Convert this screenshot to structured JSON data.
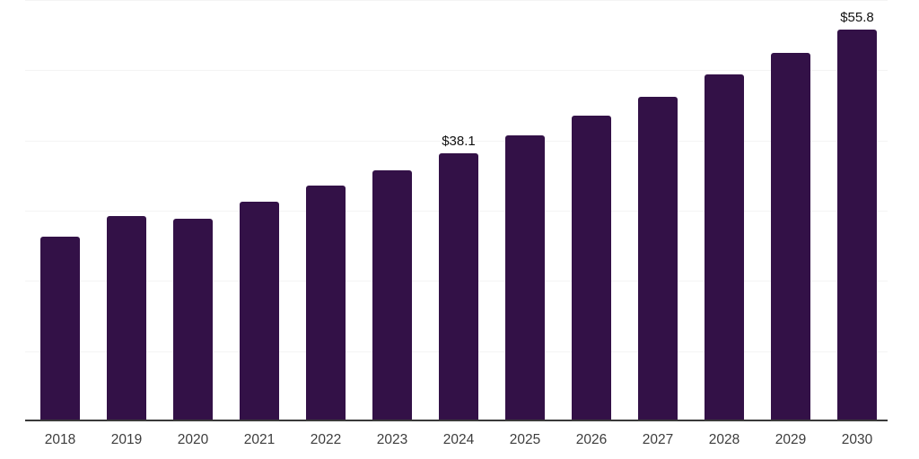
{
  "chart_data": {
    "type": "bar",
    "title": "",
    "xlabel": "",
    "ylabel": "",
    "categories": [
      "2018",
      "2019",
      "2020",
      "2021",
      "2022",
      "2023",
      "2024",
      "2025",
      "2026",
      "2027",
      "2028",
      "2029",
      "2030"
    ],
    "values": [
      26.2,
      29.1,
      28.7,
      31.2,
      33.4,
      35.7,
      38.1,
      40.6,
      43.4,
      46.2,
      49.3,
      52.5,
      55.8
    ],
    "data_labels": [
      "",
      "",
      "",
      "",
      "",
      "",
      "$38.1",
      "",
      "",
      "",
      "",
      "",
      "$55.8"
    ],
    "ylim": [
      0,
      60
    ],
    "gridline_step": 10,
    "grid": "horizontal",
    "legend": "none",
    "colors": {
      "bar": "#331147",
      "gridline": "#f4f4f4",
      "axis_line": "#3a3a3a",
      "tick_label": "#3d3d3d",
      "data_label": "#111111",
      "background": "#ffffff"
    }
  }
}
